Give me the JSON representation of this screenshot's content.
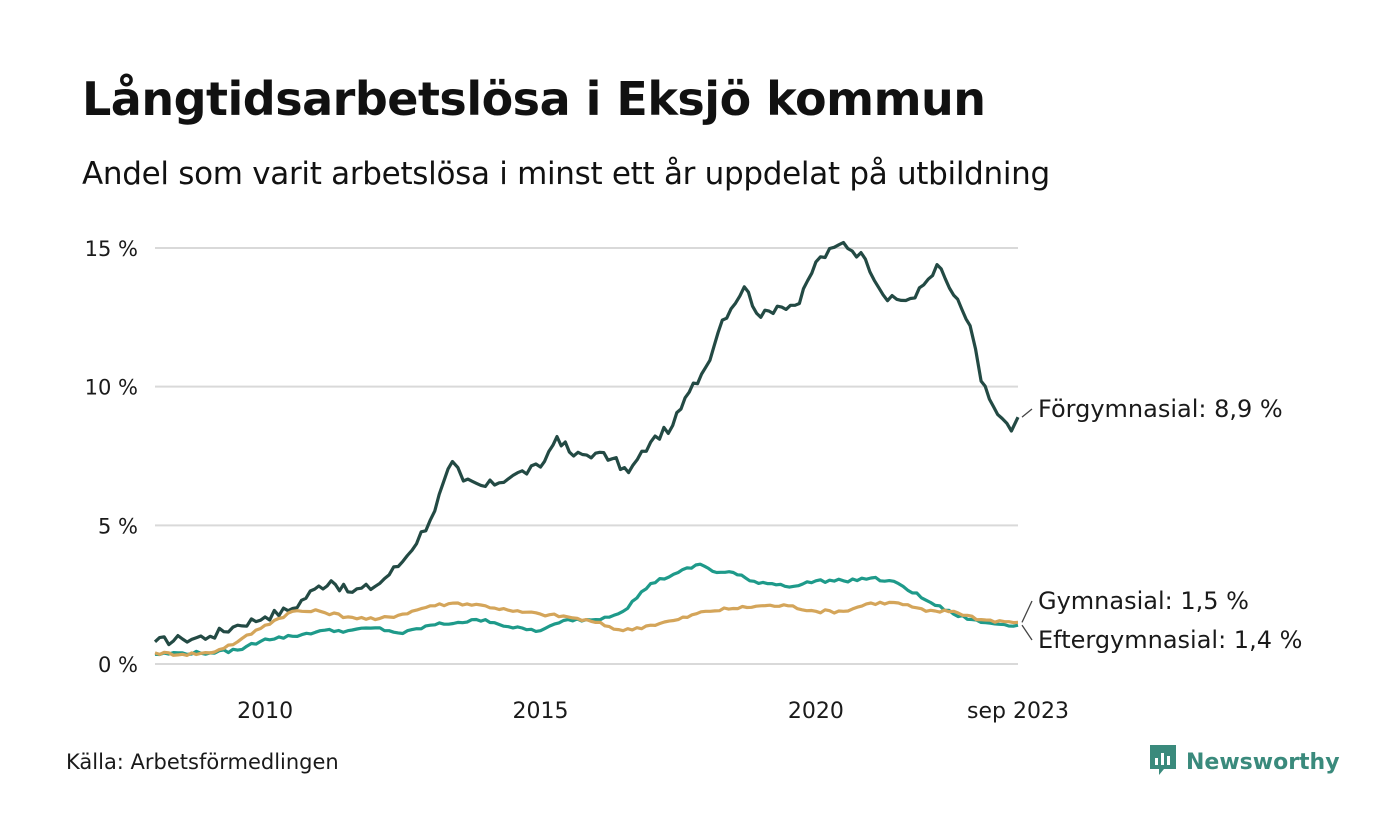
{
  "title": "Långtidsarbetslösa i Eksjö kommun",
  "subtitle": "Andel som varit arbetslösa i minst ett år uppdelat på utbildning",
  "source": "Källa: Arbetsförmedlingen",
  "brand": {
    "name": "Newsworthy",
    "icon": "bar-chart-speech-bubble-icon",
    "color": "#3a8a7c"
  },
  "chart_data": {
    "type": "line",
    "title": "Långtidsarbetslösa i Eksjö kommun",
    "ylabel": "",
    "xlabel": "",
    "ylim": [
      0,
      15
    ],
    "xlim": [
      2008.0,
      2023.67
    ],
    "grid": true,
    "y_ticks": [
      {
        "value": 0,
        "label": "0 %"
      },
      {
        "value": 5,
        "label": "5 %"
      },
      {
        "value": 10,
        "label": "10 %"
      },
      {
        "value": 15,
        "label": "15 %"
      }
    ],
    "x_ticks": [
      {
        "value": 2010,
        "label": "2010"
      },
      {
        "value": 2015,
        "label": "2015"
      },
      {
        "value": 2020,
        "label": "2020"
      },
      {
        "value": 2023.67,
        "label": "sep 2023"
      }
    ],
    "series": [
      {
        "name": "Förgymnasial",
        "end_label": "Förgymnasial: 8,9 %",
        "color": "#234a44",
        "points": [
          [
            2008.0,
            0.8
          ],
          [
            2008.5,
            0.9
          ],
          [
            2009.0,
            1.0
          ],
          [
            2009.5,
            1.4
          ],
          [
            2010.0,
            1.7
          ],
          [
            2010.5,
            2.0
          ],
          [
            2010.9,
            2.7
          ],
          [
            2011.2,
            3.0
          ],
          [
            2011.5,
            2.6
          ],
          [
            2012.0,
            2.8
          ],
          [
            2012.5,
            3.7
          ],
          [
            2013.0,
            5.2
          ],
          [
            2013.4,
            7.3
          ],
          [
            2013.6,
            6.6
          ],
          [
            2014.0,
            6.4
          ],
          [
            2014.5,
            6.8
          ],
          [
            2015.0,
            7.1
          ],
          [
            2015.3,
            8.2
          ],
          [
            2015.6,
            7.5
          ],
          [
            2016.0,
            7.6
          ],
          [
            2016.3,
            7.4
          ],
          [
            2016.6,
            6.9
          ],
          [
            2017.0,
            8.0
          ],
          [
            2017.4,
            8.6
          ],
          [
            2017.7,
            9.8
          ],
          [
            2018.0,
            10.7
          ],
          [
            2018.3,
            12.4
          ],
          [
            2018.7,
            13.6
          ],
          [
            2019.0,
            12.5
          ],
          [
            2019.3,
            12.9
          ],
          [
            2019.7,
            13.0
          ],
          [
            2020.0,
            14.5
          ],
          [
            2020.5,
            15.2
          ],
          [
            2020.9,
            14.6
          ],
          [
            2021.3,
            13.1
          ],
          [
            2021.8,
            13.2
          ],
          [
            2022.2,
            14.4
          ],
          [
            2022.5,
            13.3
          ],
          [
            2022.8,
            12.2
          ],
          [
            2023.0,
            10.2
          ],
          [
            2023.3,
            9.0
          ],
          [
            2023.55,
            8.4
          ],
          [
            2023.67,
            8.9
          ]
        ]
      },
      {
        "name": "Gymnasial",
        "end_label": "Gymnasial: 1,5 %",
        "color": "#d4a55a",
        "points": [
          [
            2008.0,
            0.4
          ],
          [
            2008.5,
            0.35
          ],
          [
            2009.0,
            0.4
          ],
          [
            2009.5,
            0.8
          ],
          [
            2010.0,
            1.4
          ],
          [
            2010.5,
            1.9
          ],
          [
            2011.0,
            1.9
          ],
          [
            2011.5,
            1.7
          ],
          [
            2012.0,
            1.6
          ],
          [
            2012.5,
            1.8
          ],
          [
            2013.0,
            2.1
          ],
          [
            2013.5,
            2.2
          ],
          [
            2014.0,
            2.1
          ],
          [
            2014.5,
            1.9
          ],
          [
            2015.0,
            1.8
          ],
          [
            2015.5,
            1.7
          ],
          [
            2016.0,
            1.5
          ],
          [
            2016.5,
            1.2
          ],
          [
            2017.0,
            1.4
          ],
          [
            2017.5,
            1.6
          ],
          [
            2018.0,
            1.9
          ],
          [
            2018.5,
            2.0
          ],
          [
            2019.0,
            2.1
          ],
          [
            2019.5,
            2.1
          ],
          [
            2020.0,
            1.9
          ],
          [
            2020.5,
            1.9
          ],
          [
            2021.0,
            2.2
          ],
          [
            2021.5,
            2.2
          ],
          [
            2022.0,
            1.9
          ],
          [
            2022.5,
            1.9
          ],
          [
            2023.0,
            1.6
          ],
          [
            2023.67,
            1.5
          ]
        ]
      },
      {
        "name": "Eftergymnasial",
        "end_label": "Eftergymnasial: 1,4 %",
        "color": "#1e9a8a",
        "points": [
          [
            2008.0,
            0.35
          ],
          [
            2008.5,
            0.4
          ],
          [
            2009.0,
            0.4
          ],
          [
            2009.5,
            0.5
          ],
          [
            2010.0,
            0.9
          ],
          [
            2010.5,
            1.0
          ],
          [
            2011.0,
            1.2
          ],
          [
            2011.5,
            1.2
          ],
          [
            2012.0,
            1.3
          ],
          [
            2012.5,
            1.1
          ],
          [
            2013.0,
            1.4
          ],
          [
            2013.5,
            1.5
          ],
          [
            2014.0,
            1.6
          ],
          [
            2014.5,
            1.3
          ],
          [
            2015.0,
            1.2
          ],
          [
            2015.5,
            1.6
          ],
          [
            2016.0,
            1.6
          ],
          [
            2016.5,
            1.9
          ],
          [
            2017.0,
            2.9
          ],
          [
            2017.5,
            3.3
          ],
          [
            2017.9,
            3.6
          ],
          [
            2018.2,
            3.3
          ],
          [
            2018.5,
            3.3
          ],
          [
            2018.8,
            3.0
          ],
          [
            2019.2,
            2.9
          ],
          [
            2019.6,
            2.8
          ],
          [
            2020.0,
            3.0
          ],
          [
            2020.5,
            3.0
          ],
          [
            2021.0,
            3.1
          ],
          [
            2021.5,
            2.9
          ],
          [
            2022.0,
            2.3
          ],
          [
            2022.5,
            1.8
          ],
          [
            2023.0,
            1.5
          ],
          [
            2023.67,
            1.4
          ]
        ]
      }
    ]
  }
}
